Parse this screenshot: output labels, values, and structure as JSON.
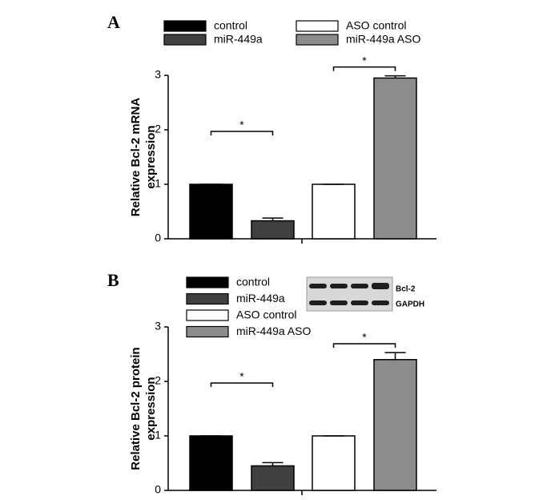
{
  "chart_data": [
    {
      "type": "bar",
      "panel": "A",
      "ylabel": [
        "Relative Bcl-2 mRNA",
        "expression"
      ],
      "series": [
        {
          "name": "control",
          "color": "#000000",
          "values": [
            1.0
          ],
          "errors": [
            0
          ]
        },
        {
          "name": "miR-449a",
          "color": "#404040",
          "values": [
            0.33
          ],
          "errors": [
            0.05
          ]
        },
        {
          "name": "ASO control",
          "color": "#ffffff",
          "values": [
            1.0
          ],
          "errors": [
            0
          ]
        },
        {
          "name": "miR-449a ASO",
          "color": "#8c8c8c",
          "values": [
            2.95
          ],
          "errors": [
            0.04
          ]
        }
      ],
      "ylim": [
        0,
        3
      ],
      "yticks": [
        0,
        1,
        2,
        3
      ],
      "annotations": [
        "*",
        "*"
      ]
    },
    {
      "type": "bar",
      "panel": "B",
      "ylabel": [
        "Relative Bcl-2 protein",
        "expression"
      ],
      "series": [
        {
          "name": "control",
          "color": "#000000",
          "values": [
            1.0
          ],
          "errors": [
            0
          ]
        },
        {
          "name": "miR-449a",
          "color": "#404040",
          "values": [
            0.45
          ],
          "errors": [
            0.06
          ]
        },
        {
          "name": "ASO control",
          "color": "#ffffff",
          "values": [
            1.0
          ],
          "errors": [
            0
          ]
        },
        {
          "name": "miR-449a ASO",
          "color": "#8c8c8c",
          "values": [
            2.4
          ],
          "errors": [
            0.13
          ]
        }
      ],
      "ylim": [
        0,
        3
      ],
      "yticks": [
        0,
        1,
        2,
        3
      ],
      "annotations": [
        "*",
        "*"
      ],
      "blot_labels": [
        "Bcl-2",
        "GAPDH"
      ]
    }
  ]
}
